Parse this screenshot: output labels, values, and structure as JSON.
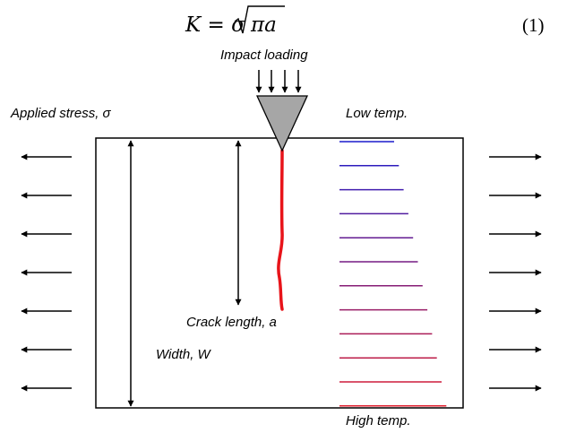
{
  "equation": {
    "lhs": "K = σ",
    "radicand": "πa",
    "number": "(1)"
  },
  "labels": {
    "impact_loading": "Impact loading",
    "applied_stress": "Applied stress, σ",
    "low_temp": "Low temp.",
    "high_temp": "High temp.",
    "crack_length": "Crack length, a",
    "width": "Width, W"
  },
  "colors": {
    "crack": "#e8141a",
    "indenter": "#a6a6a6",
    "temp_low": "#1c1ccc",
    "temp_high": "#e01c2c",
    "ink": "#000000"
  },
  "temperature_gradient": {
    "line_count": 12
  },
  "stress_arrows": {
    "per_side": 7
  }
}
